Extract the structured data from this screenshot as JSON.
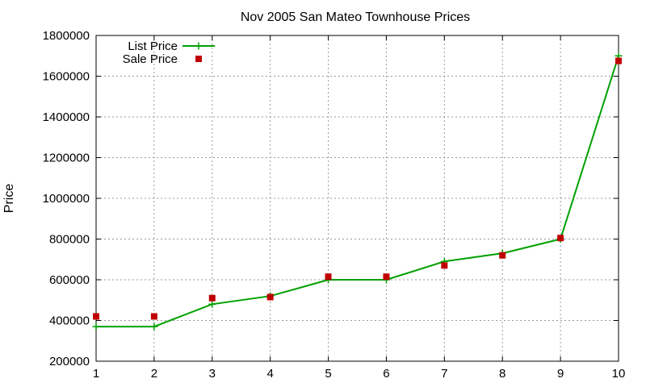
{
  "chart_data": {
    "type": "line",
    "title": "Nov 2005 San Mateo Townhouse Prices",
    "xlabel": "",
    "ylabel": "Price",
    "xlim": [
      1,
      10
    ],
    "ylim": [
      200000,
      1800000
    ],
    "x_ticks": [
      "1",
      "2",
      "3",
      "4",
      "5",
      "6",
      "7",
      "8",
      "9",
      "10"
    ],
    "y_ticks": [
      "200000",
      "400000",
      "600000",
      "800000",
      "1000000",
      "1200000",
      "1400000",
      "1600000",
      "1800000"
    ],
    "grid": true,
    "legend_position": "top-left",
    "x": [
      1,
      2,
      3,
      4,
      5,
      6,
      7,
      8,
      9,
      10
    ],
    "series": [
      {
        "name": "List Price",
        "style": "linespoints",
        "marker": "plus",
        "color": "#00a000",
        "values": [
          370000,
          370000,
          480000,
          520000,
          600000,
          600000,
          690000,
          730000,
          800000,
          1700000
        ]
      },
      {
        "name": "Sale Price",
        "style": "points",
        "marker": "square",
        "color": "#c00000",
        "values": [
          420000,
          420000,
          510000,
          515000,
          615000,
          615000,
          670000,
          720000,
          805000,
          1675000
        ]
      }
    ]
  }
}
